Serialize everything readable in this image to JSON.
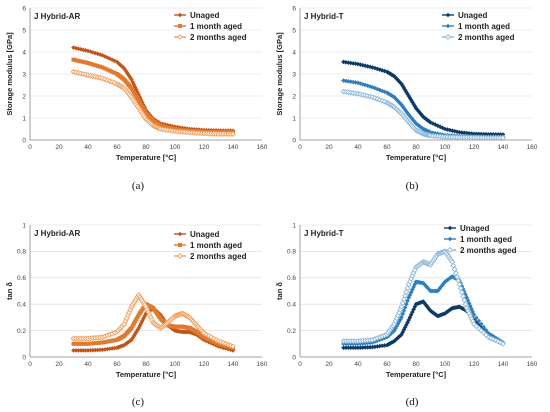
{
  "chart_data": [
    {
      "type": "scatter",
      "title": "J Hybrid-AR",
      "caption": "(a)",
      "xlabel": "Temperature [°C]",
      "ylabel": "Storage modulus [GPa]",
      "xlim": [
        0,
        160
      ],
      "ylim": [
        0,
        6
      ],
      "xticks": [
        "0",
        "20",
        "40",
        "60",
        "80",
        "100",
        "120",
        "140",
        "160"
      ],
      "yticks": [
        "0",
        "1",
        "2",
        "3",
        "4",
        "5",
        "6"
      ],
      "legend": "top-right",
      "series": [
        {
          "name": "Unaged",
          "color": "#c0551a",
          "marker": "diamond-filled",
          "x": [
            30,
            40,
            50,
            60,
            65,
            70,
            75,
            80,
            85,
            90,
            100,
            110,
            120,
            130,
            140
          ],
          "y": [
            4.2,
            4.05,
            3.85,
            3.55,
            3.25,
            2.75,
            2.05,
            1.35,
            0.95,
            0.75,
            0.6,
            0.5,
            0.45,
            0.43,
            0.42
          ]
        },
        {
          "name": "1 month aged",
          "color": "#e07a2e",
          "marker": "square-filled",
          "x": [
            30,
            40,
            50,
            60,
            65,
            70,
            75,
            80,
            85,
            90,
            100,
            110,
            120,
            130,
            140
          ],
          "y": [
            3.65,
            3.5,
            3.3,
            3.0,
            2.75,
            2.35,
            1.8,
            1.2,
            0.85,
            0.65,
            0.5,
            0.42,
            0.38,
            0.36,
            0.35
          ]
        },
        {
          "name": "2 months aged",
          "color": "#f0a060",
          "marker": "diamond-open",
          "x": [
            30,
            40,
            50,
            60,
            65,
            70,
            75,
            80,
            85,
            90,
            100,
            110,
            120,
            130,
            140
          ],
          "y": [
            3.1,
            2.95,
            2.8,
            2.55,
            2.35,
            1.95,
            1.45,
            0.95,
            0.65,
            0.5,
            0.4,
            0.34,
            0.3,
            0.28,
            0.27
          ]
        }
      ]
    },
    {
      "type": "scatter",
      "title": "J Hybrid-T",
      "caption": "(b)",
      "xlabel": "Temperature [°C]",
      "ylabel": "Storage modulus [GPa]",
      "xlim": [
        0,
        160
      ],
      "ylim": [
        0,
        6
      ],
      "xticks": [
        "0",
        "20",
        "40",
        "60",
        "80",
        "100",
        "120",
        "140",
        "160"
      ],
      "yticks": [
        "0",
        "1",
        "2",
        "3",
        "4",
        "5",
        "6"
      ],
      "legend": "top-right",
      "series": [
        {
          "name": "Unaged",
          "color": "#0d3a66",
          "marker": "diamond-filled",
          "x": [
            30,
            40,
            50,
            60,
            65,
            70,
            75,
            80,
            85,
            90,
            100,
            110,
            120,
            130,
            140
          ],
          "y": [
            3.55,
            3.45,
            3.3,
            3.1,
            2.9,
            2.55,
            2.0,
            1.45,
            1.05,
            0.8,
            0.5,
            0.35,
            0.28,
            0.26,
            0.25
          ]
        },
        {
          "name": "1 month aged",
          "color": "#2e7fbf",
          "marker": "diamond-filled",
          "x": [
            30,
            40,
            50,
            60,
            65,
            70,
            75,
            80,
            85,
            90,
            100,
            110,
            120,
            130,
            140
          ],
          "y": [
            2.7,
            2.6,
            2.4,
            2.15,
            1.95,
            1.6,
            1.15,
            0.75,
            0.5,
            0.35,
            0.22,
            0.18,
            0.16,
            0.15,
            0.15
          ]
        },
        {
          "name": "2 months aged",
          "color": "#8fb8d8",
          "marker": "diamond-open",
          "x": [
            30,
            40,
            50,
            60,
            65,
            70,
            75,
            80,
            85,
            90,
            100,
            110,
            120,
            130,
            140
          ],
          "y": [
            2.2,
            2.1,
            1.95,
            1.7,
            1.5,
            1.2,
            0.8,
            0.45,
            0.28,
            0.2,
            0.14,
            0.12,
            0.11,
            0.1,
            0.1
          ]
        }
      ]
    },
    {
      "type": "scatter",
      "title": "J Hybrid-AR",
      "caption": "(c)",
      "xlabel": "Temperature [°C]",
      "ylabel": "tan δ",
      "xlim": [
        0,
        160
      ],
      "ylim": [
        0,
        1
      ],
      "xticks": [
        "0",
        "20",
        "40",
        "60",
        "80",
        "100",
        "120",
        "140",
        "160"
      ],
      "yticks": [
        "0",
        "0.2",
        "0.4",
        "0.6",
        "0.8",
        "1"
      ],
      "legend": "top-right",
      "series": [
        {
          "name": "Unaged",
          "color": "#c0551a",
          "marker": "diamond-filled",
          "x": [
            30,
            40,
            50,
            60,
            65,
            70,
            75,
            80,
            85,
            90,
            95,
            100,
            105,
            110,
            115,
            120,
            130,
            140
          ],
          "y": [
            0.05,
            0.05,
            0.055,
            0.07,
            0.09,
            0.13,
            0.22,
            0.33,
            0.37,
            0.32,
            0.24,
            0.2,
            0.19,
            0.19,
            0.17,
            0.13,
            0.08,
            0.05
          ]
        },
        {
          "name": "1 month aged",
          "color": "#e07a2e",
          "marker": "square-filled",
          "x": [
            30,
            40,
            50,
            60,
            65,
            70,
            75,
            80,
            85,
            90,
            95,
            100,
            105,
            110,
            115,
            120,
            130,
            140
          ],
          "y": [
            0.1,
            0.1,
            0.11,
            0.13,
            0.16,
            0.22,
            0.32,
            0.4,
            0.37,
            0.29,
            0.24,
            0.23,
            0.23,
            0.22,
            0.19,
            0.15,
            0.1,
            0.07
          ]
        },
        {
          "name": "2 months aged",
          "color": "#f0a060",
          "marker": "diamond-open",
          "x": [
            30,
            40,
            50,
            60,
            65,
            70,
            75,
            80,
            85,
            90,
            95,
            100,
            105,
            110,
            115,
            120,
            130,
            140
          ],
          "y": [
            0.14,
            0.14,
            0.15,
            0.19,
            0.25,
            0.38,
            0.47,
            0.38,
            0.26,
            0.22,
            0.26,
            0.31,
            0.33,
            0.3,
            0.24,
            0.18,
            0.12,
            0.08
          ]
        }
      ]
    },
    {
      "type": "scatter",
      "title": "J Hybrid-T",
      "caption": "(d)",
      "xlabel": "Temperature [°C]",
      "ylabel": "tan δ",
      "xlim": [
        0,
        160
      ],
      "ylim": [
        0,
        1
      ],
      "xticks": [
        "0",
        "20",
        "40",
        "60",
        "80",
        "100",
        "120",
        "140",
        "160"
      ],
      "yticks": [
        "0",
        "0.2",
        "0.4",
        "0.6",
        "0.8",
        "1"
      ],
      "legend": "top-right",
      "series": [
        {
          "name": "Unaged",
          "color": "#0d3a66",
          "marker": "diamond-filled",
          "x": [
            30,
            40,
            50,
            60,
            65,
            70,
            75,
            80,
            85,
            90,
            95,
            100,
            105,
            110,
            115,
            120,
            130,
            140
          ],
          "y": [
            0.07,
            0.07,
            0.075,
            0.09,
            0.12,
            0.17,
            0.28,
            0.4,
            0.42,
            0.35,
            0.31,
            0.33,
            0.37,
            0.38,
            0.35,
            0.28,
            0.17,
            0.1
          ]
        },
        {
          "name": "1 month aged",
          "color": "#2e7fbf",
          "marker": "diamond-filled",
          "x": [
            30,
            40,
            50,
            60,
            65,
            70,
            75,
            80,
            85,
            90,
            95,
            100,
            105,
            110,
            115,
            120,
            130,
            140
          ],
          "y": [
            0.1,
            0.1,
            0.11,
            0.15,
            0.2,
            0.3,
            0.45,
            0.57,
            0.56,
            0.5,
            0.5,
            0.57,
            0.61,
            0.58,
            0.45,
            0.32,
            0.18,
            0.11
          ]
        },
        {
          "name": "2 months aged",
          "color": "#8fb8d8",
          "marker": "diamond-open",
          "x": [
            30,
            40,
            50,
            60,
            65,
            70,
            75,
            80,
            85,
            90,
            95,
            100,
            105,
            110,
            115,
            120,
            130,
            140
          ],
          "y": [
            0.12,
            0.12,
            0.13,
            0.17,
            0.25,
            0.38,
            0.55,
            0.68,
            0.72,
            0.7,
            0.78,
            0.8,
            0.72,
            0.55,
            0.37,
            0.25,
            0.15,
            0.1
          ]
        }
      ]
    }
  ]
}
